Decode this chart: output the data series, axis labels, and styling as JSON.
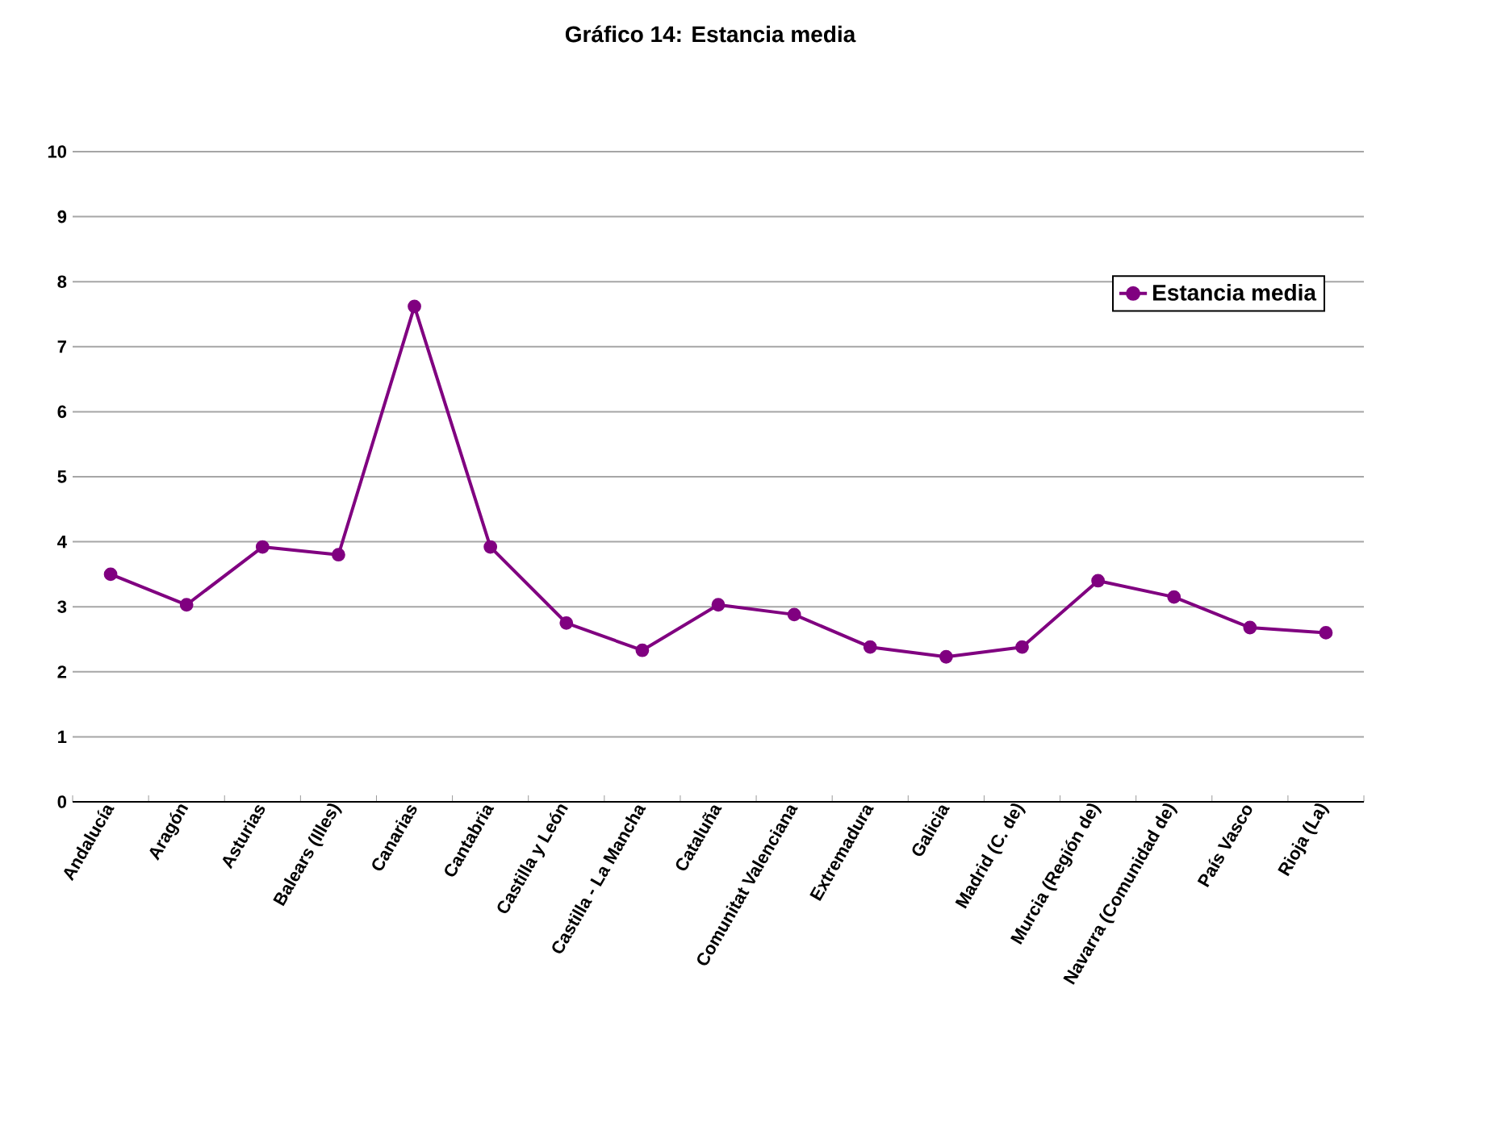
{
  "chart_data": {
    "type": "line",
    "title": "Gráfico 14: Estancia media",
    "categories": [
      "Andalucía",
      "Aragón",
      "Asturias",
      "Balears (Illes)",
      "Canarias",
      "Cantabria",
      "Castilla y León",
      "Castilla - La Mancha",
      "Cataluña",
      "Comunitat Valenciana",
      "Extremadura",
      "Galicia",
      "Madrid (C. de)",
      "Murcia (Región de)",
      "Navarra (Comunidad de)",
      "País Vasco",
      "Rioja (La)"
    ],
    "series": [
      {
        "name": "Estancia media",
        "color": "#800080",
        "values": [
          3.5,
          3.03,
          3.92,
          3.8,
          7.62,
          3.92,
          2.75,
          2.33,
          3.03,
          2.88,
          2.38,
          2.23,
          2.38,
          3.4,
          3.15,
          2.68,
          2.6
        ]
      }
    ],
    "ylim": [
      0,
      10
    ],
    "yticks": [
      0,
      1,
      2,
      3,
      4,
      5,
      6,
      7,
      8,
      9,
      10
    ],
    "grid": "y",
    "legend": "top right",
    "marker": "circle",
    "line_style": "solid"
  }
}
